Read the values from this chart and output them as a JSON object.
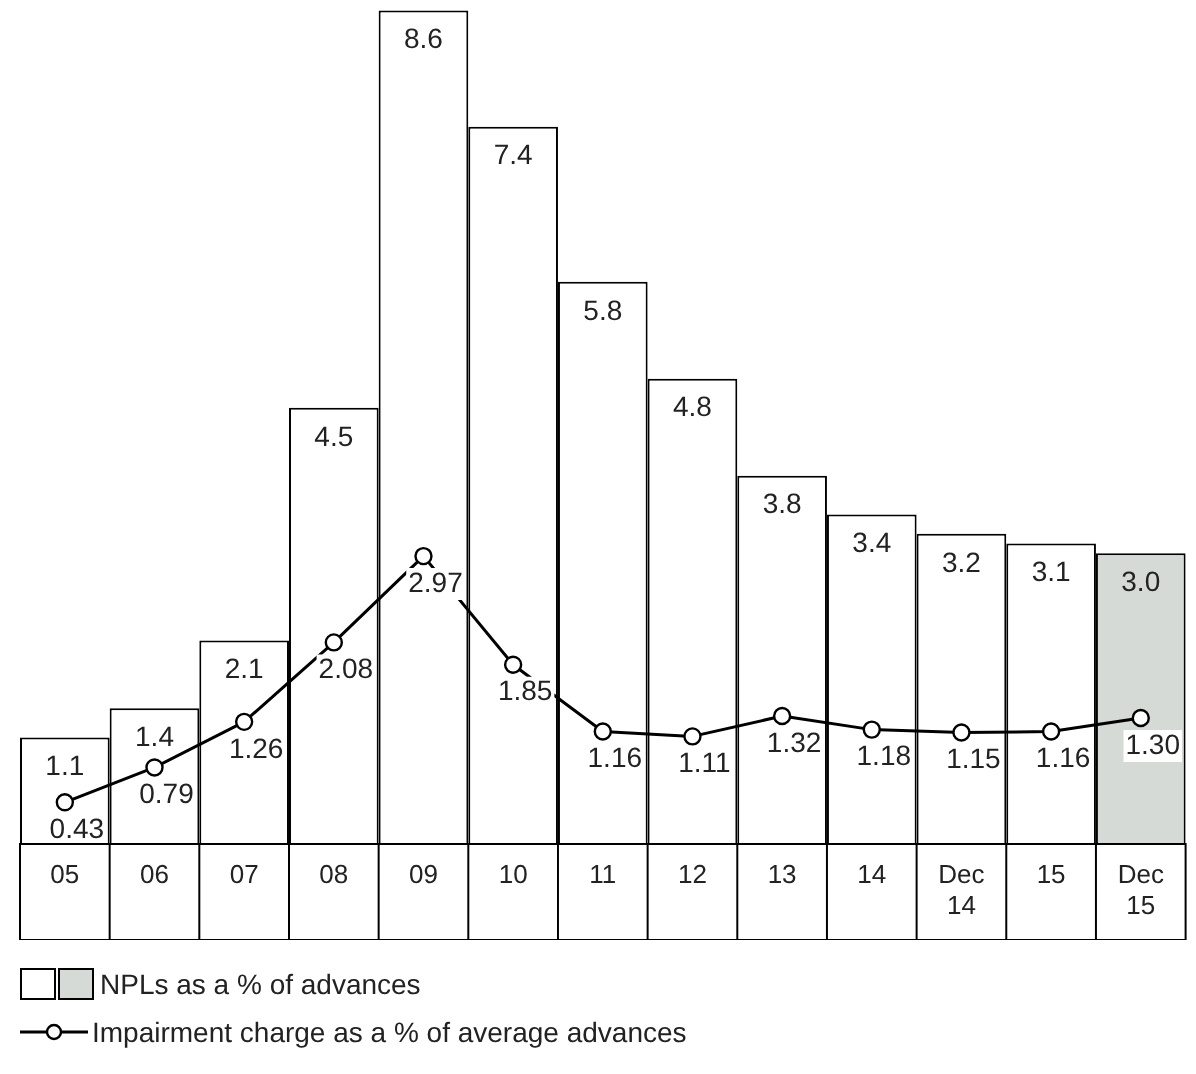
{
  "chart_data": {
    "type": "bar",
    "categories": [
      "05",
      "06",
      "07",
      "08",
      "09",
      "10",
      "11",
      "12",
      "13",
      "14",
      "Dec 14",
      "15",
      "Dec 15"
    ],
    "series": [
      {
        "name": "NPLs as a % of advances",
        "color": "#ffffff",
        "colors": [
          "#ffffff",
          "#ffffff",
          "#ffffff",
          "#ffffff",
          "#ffffff",
          "#ffffff",
          "#ffffff",
          "#ffffff",
          "#ffffff",
          "#ffffff",
          "#ffffff",
          "#ffffff",
          "#d5dad7"
        ],
        "values": [
          1.1,
          1.4,
          2.1,
          4.5,
          8.6,
          7.4,
          5.8,
          4.8,
          3.8,
          3.4,
          3.2,
          3.1,
          3.0
        ],
        "value_labels": [
          "1.1",
          "1.4",
          "2.1",
          "4.5",
          "8.6",
          "7.4",
          "5.8",
          "4.8",
          "3.8",
          "3.4",
          "3.2",
          "3.1",
          "3.0"
        ]
      },
      {
        "name": "Impairment charge as a % of average advances",
        "type": "line",
        "color": "#000000",
        "values": [
          0.43,
          0.79,
          1.26,
          2.08,
          2.97,
          1.85,
          1.16,
          1.11,
          1.32,
          1.18,
          1.15,
          1.16,
          1.3
        ],
        "value_labels": [
          "0.43",
          "0.79",
          "1.26",
          "2.08",
          "2.97",
          "1.85",
          "1.16",
          "1.11",
          "1.32",
          "1.18",
          "1.15",
          "1.16",
          "1.30"
        ]
      }
    ],
    "marker": "circle",
    "legend": "bottom",
    "grid": false,
    "tick_labels": "x"
  }
}
